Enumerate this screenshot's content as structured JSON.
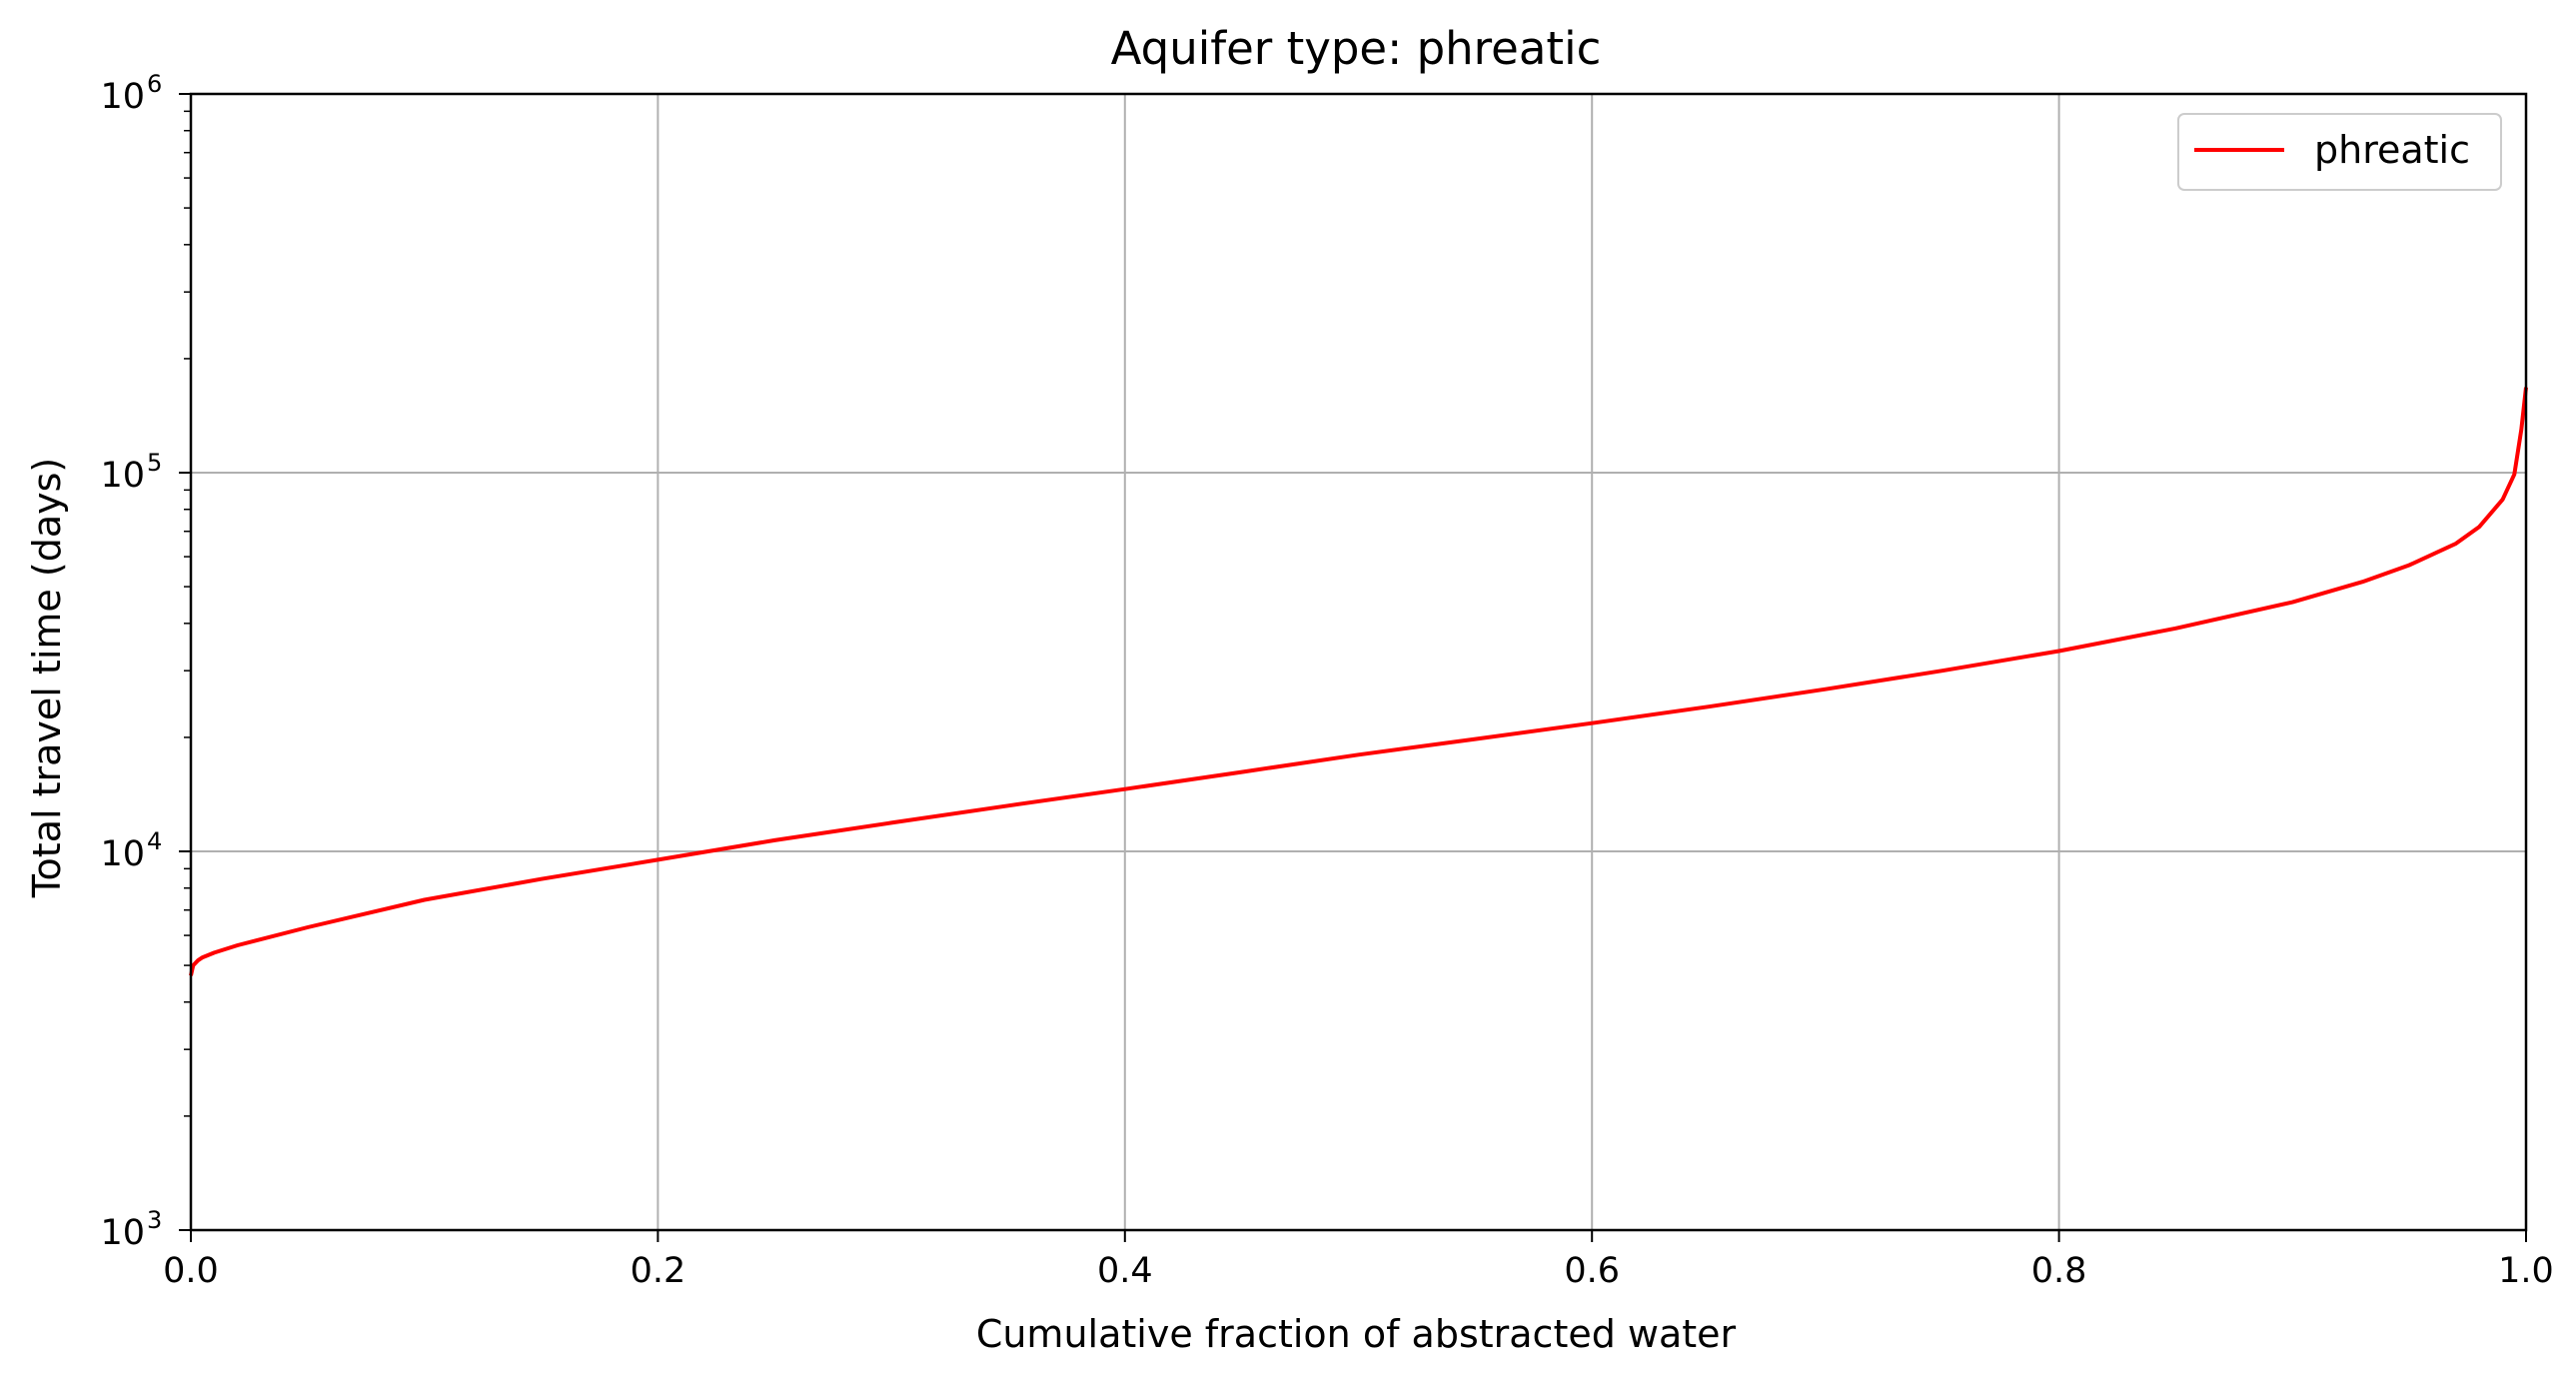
{
  "chart_data": {
    "type": "line",
    "title": "Aquifer type: phreatic",
    "xlabel": "Cumulative fraction of abstracted water",
    "ylabel": "Total travel time (days)",
    "x_scale": "linear",
    "y_scale": "log",
    "xlim": [
      0.0,
      1.0
    ],
    "ylim": [
      1000,
      1000000
    ],
    "x_ticks": [
      "0.0",
      "0.2",
      "0.4",
      "0.6",
      "0.8",
      "1.0"
    ],
    "y_ticks": [
      {
        "base": "10",
        "exp": "3"
      },
      {
        "base": "10",
        "exp": "4"
      },
      {
        "base": "10",
        "exp": "5"
      },
      {
        "base": "10",
        "exp": "6"
      }
    ],
    "grid": true,
    "legend_position": "top-right",
    "series": [
      {
        "name": "phreatic",
        "color": "#ff0000",
        "x": [
          0.0,
          0.001,
          0.003,
          0.005,
          0.01,
          0.02,
          0.05,
          0.1,
          0.15,
          0.2,
          0.25,
          0.3,
          0.35,
          0.4,
          0.45,
          0.5,
          0.55,
          0.6,
          0.65,
          0.7,
          0.75,
          0.8,
          0.85,
          0.9,
          0.93,
          0.95,
          0.97,
          0.98,
          0.99,
          0.995,
          0.998,
          1.0
        ],
        "y": [
          4700,
          5000,
          5150,
          5250,
          5400,
          5650,
          6300,
          7450,
          8450,
          9500,
          10700,
          11900,
          13200,
          14600,
          16200,
          18000,
          19800,
          21800,
          24100,
          26800,
          30000,
          33800,
          38800,
          45500,
          51500,
          57000,
          65000,
          72000,
          85000,
          99000,
          130000,
          168000
        ]
      }
    ]
  }
}
